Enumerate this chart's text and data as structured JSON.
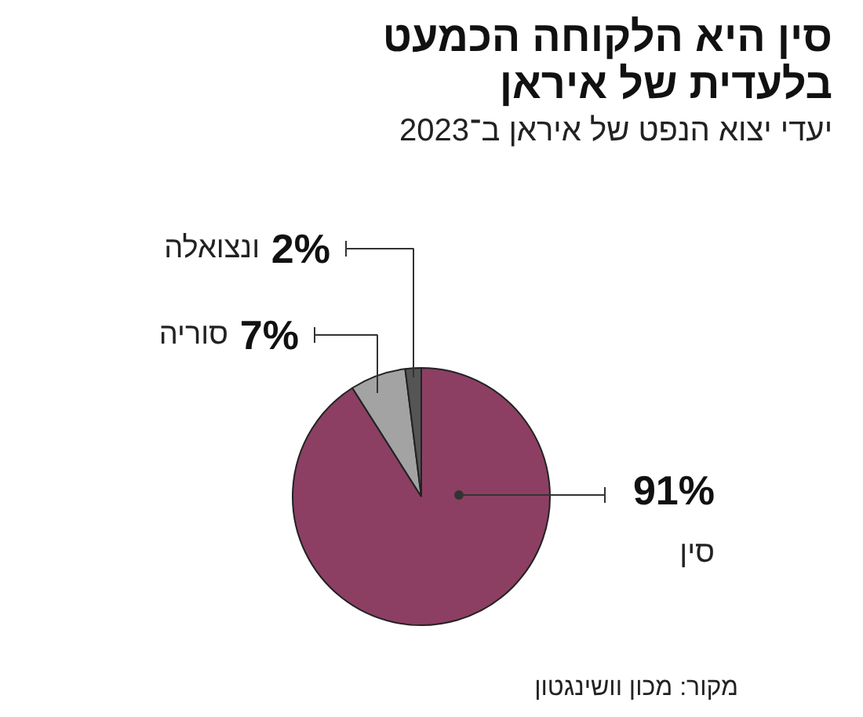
{
  "chart_data": {
    "type": "pie",
    "title": "סין היא הלקוחה הכמעט בלעדית של איראן",
    "subtitle": "יעדי יצוא הנפט של איראן ב־2023",
    "categories": [
      "סין",
      "סוריה",
      "ונצואלה"
    ],
    "values": [
      91,
      7,
      2
    ],
    "value_labels": [
      "91%",
      "7%",
      "2%"
    ],
    "colors": [
      "#8c3f63",
      "#a3a3a3",
      "#555555"
    ],
    "annotations": [
      "מקור: מכון וושינגטון"
    ]
  }
}
